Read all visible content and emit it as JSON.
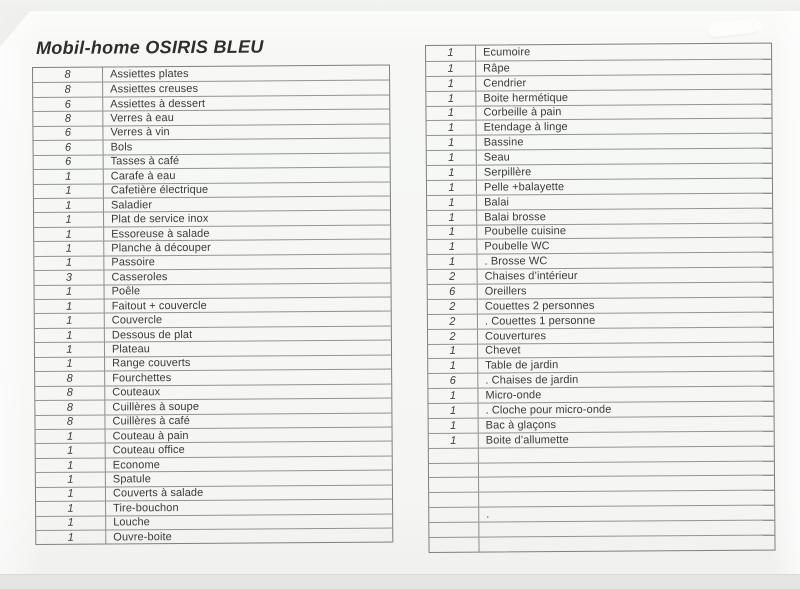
{
  "header": {
    "title": "Mobil-home OSIRIS BLEU"
  },
  "colors": {
    "background": "#e5e5e3",
    "paper": "#f6f7f5",
    "table_line_outer": "#7f7f7b",
    "table_line_inner": "#93938f",
    "ink": "#3b3b39"
  },
  "inventory": {
    "left": [
      {
        "qty": "8",
        "item": "Assiettes plates"
      },
      {
        "qty": "8",
        "item": "Assiettes creuses"
      },
      {
        "qty": "6",
        "item": "Assiettes à dessert"
      },
      {
        "qty": "8",
        "item": "Verres à eau"
      },
      {
        "qty": "6",
        "item": "Verres à vin"
      },
      {
        "qty": "6",
        "item": "Bols"
      },
      {
        "qty": "6",
        "item": "Tasses à café"
      },
      {
        "qty": "1",
        "item": "Carafe à eau"
      },
      {
        "qty": "1",
        "item": "Cafetière électrique"
      },
      {
        "qty": "1",
        "item": "Saladier"
      },
      {
        "qty": "1",
        "item": "Plat de service inox"
      },
      {
        "qty": "1",
        "item": "Essoreuse à salade"
      },
      {
        "qty": "1",
        "item": "Planche à découper"
      },
      {
        "qty": "1",
        "item": "Passoire"
      },
      {
        "qty": "3",
        "item": "Casseroles"
      },
      {
        "qty": "1",
        "item": "Poêle"
      },
      {
        "qty": "1",
        "item": "Faitout + couvercle"
      },
      {
        "qty": "1",
        "item": "Couvercle"
      },
      {
        "qty": "1",
        "item": "Dessous de plat"
      },
      {
        "qty": "1",
        "item": "Plateau"
      },
      {
        "qty": "1",
        "item": "Range couverts"
      },
      {
        "qty": "8",
        "item": "Fourchettes"
      },
      {
        "qty": "8",
        "item": "Couteaux"
      },
      {
        "qty": "8",
        "item": "Cuillères à soupe"
      },
      {
        "qty": "8",
        "item": "Cuillères à café"
      },
      {
        "qty": "1",
        "item": "Couteau à pain"
      },
      {
        "qty": "1",
        "item": "Couteau office"
      },
      {
        "qty": "1",
        "item": "Econome"
      },
      {
        "qty": "1",
        "item": "Spatule"
      },
      {
        "qty": "1",
        "item": "Couverts à salade"
      },
      {
        "qty": "1",
        "item": "Tire-bouchon"
      },
      {
        "qty": "1",
        "item": "Louche"
      },
      {
        "qty": "1",
        "item": "Ouvre-boite"
      }
    ],
    "right": [
      {
        "qty": "1",
        "item": "Ecumoire"
      },
      {
        "qty": "1",
        "item": "Râpe"
      },
      {
        "qty": "1",
        "item": "Cendrier"
      },
      {
        "qty": "1",
        "item": "Boite hermétique"
      },
      {
        "qty": "1",
        "item": "Corbeille à pain"
      },
      {
        "qty": "1",
        "item": "Etendage à linge"
      },
      {
        "qty": "1",
        "item": "Bassine"
      },
      {
        "qty": "1",
        "item": "Seau"
      },
      {
        "qty": "1",
        "item": "Serpillère"
      },
      {
        "qty": "1",
        "item": "Pelle +balayette"
      },
      {
        "qty": "1",
        "item": "Balai"
      },
      {
        "qty": "1",
        "item": "Balai brosse"
      },
      {
        "qty": "1",
        "item": "Poubelle cuisine"
      },
      {
        "qty": "1",
        "item": "Poubelle WC"
      },
      {
        "qty": "1",
        "item": ". Brosse WC"
      },
      {
        "qty": "2",
        "item": "Chaises d’intérieur"
      },
      {
        "qty": "6",
        "item": "Oreillers"
      },
      {
        "qty": "2",
        "item": "Couettes 2 personnes"
      },
      {
        "qty": "2",
        "item": ". Couettes 1 personne"
      },
      {
        "qty": "2",
        "item": "Couvertures"
      },
      {
        "qty": "1",
        "item": "Chevet"
      },
      {
        "qty": "1",
        "item": "Table de jardin"
      },
      {
        "qty": "6",
        "item": ". Chaises de jardin"
      },
      {
        "qty": "1",
        "item": "Micro-onde"
      },
      {
        "qty": "1",
        "item": ". Cloche pour micro-onde"
      },
      {
        "qty": "1",
        "item": "Bac à glaçons"
      },
      {
        "qty": "1",
        "item": "Boite d’allumette"
      },
      {
        "qty": "",
        "item": ""
      },
      {
        "qty": "",
        "item": ""
      },
      {
        "qty": "",
        "item": ""
      },
      {
        "qty": "",
        "item": ""
      },
      {
        "qty": "",
        "item": "."
      },
      {
        "qty": "",
        "item": ""
      },
      {
        "qty": "",
        "item": ""
      }
    ]
  }
}
